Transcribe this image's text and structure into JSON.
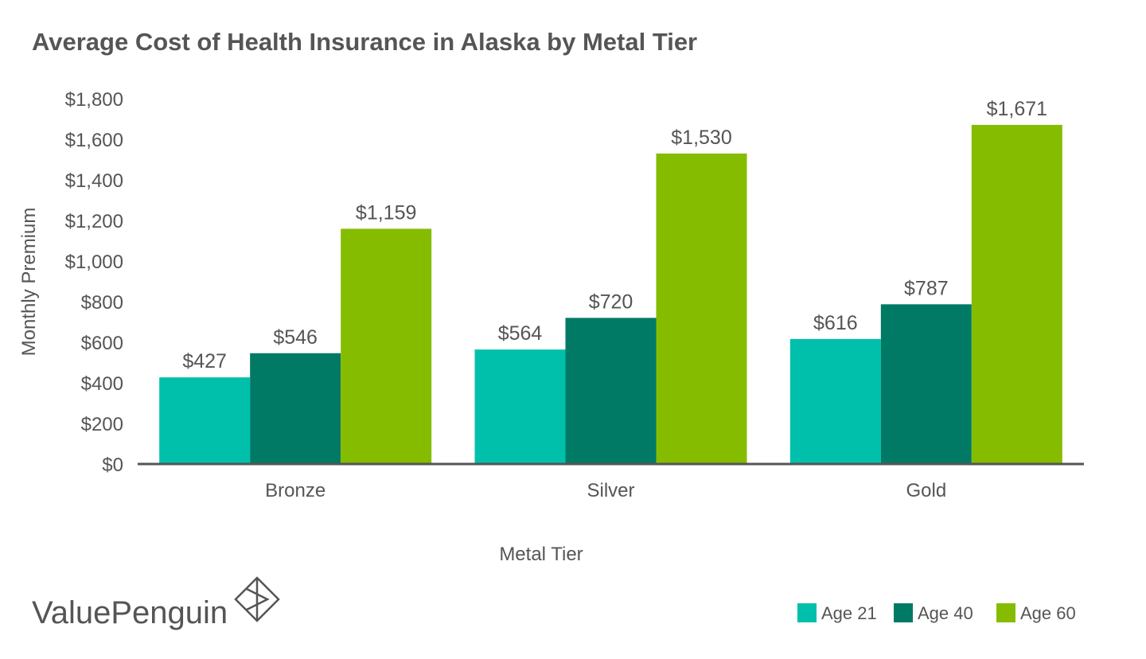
{
  "brand": {
    "name": "ValuePenguin",
    "logo_icon": "diamond-logo-icon"
  },
  "colors": {
    "age21": "#00c0ac",
    "age40": "#007a65",
    "age60": "#86bc00",
    "axis": "#555555",
    "text": "#555555"
  },
  "chart_data": {
    "type": "bar",
    "title": "Average Cost of Health Insurance in Alaska by Metal Tier",
    "xlabel": "Metal Tier",
    "ylabel": "Monthly Premium",
    "categories": [
      "Bronze",
      "Silver",
      "Gold"
    ],
    "series": [
      {
        "name": "Age 21",
        "values": [
          427,
          564,
          616
        ],
        "labels": [
          "$427",
          "$564",
          "$616"
        ]
      },
      {
        "name": "Age 40",
        "values": [
          546,
          720,
          787
        ],
        "labels": [
          "$546",
          "$720",
          "$787"
        ]
      },
      {
        "name": "Age 60",
        "values": [
          1159,
          1530,
          1671
        ],
        "labels": [
          "$1,159",
          "$1,530",
          "$1,671"
        ]
      }
    ],
    "ylim": [
      0,
      1800
    ],
    "yticks": [
      0,
      200,
      400,
      600,
      800,
      1000,
      1200,
      1400,
      1600,
      1800
    ],
    "ytick_labels": [
      "$0",
      "$200",
      "$400",
      "$600",
      "$800",
      "$1,000",
      "$1,200",
      "$1,400",
      "$1,600",
      "$1,800"
    ],
    "grid": false,
    "legend_position": "bottom-right"
  }
}
